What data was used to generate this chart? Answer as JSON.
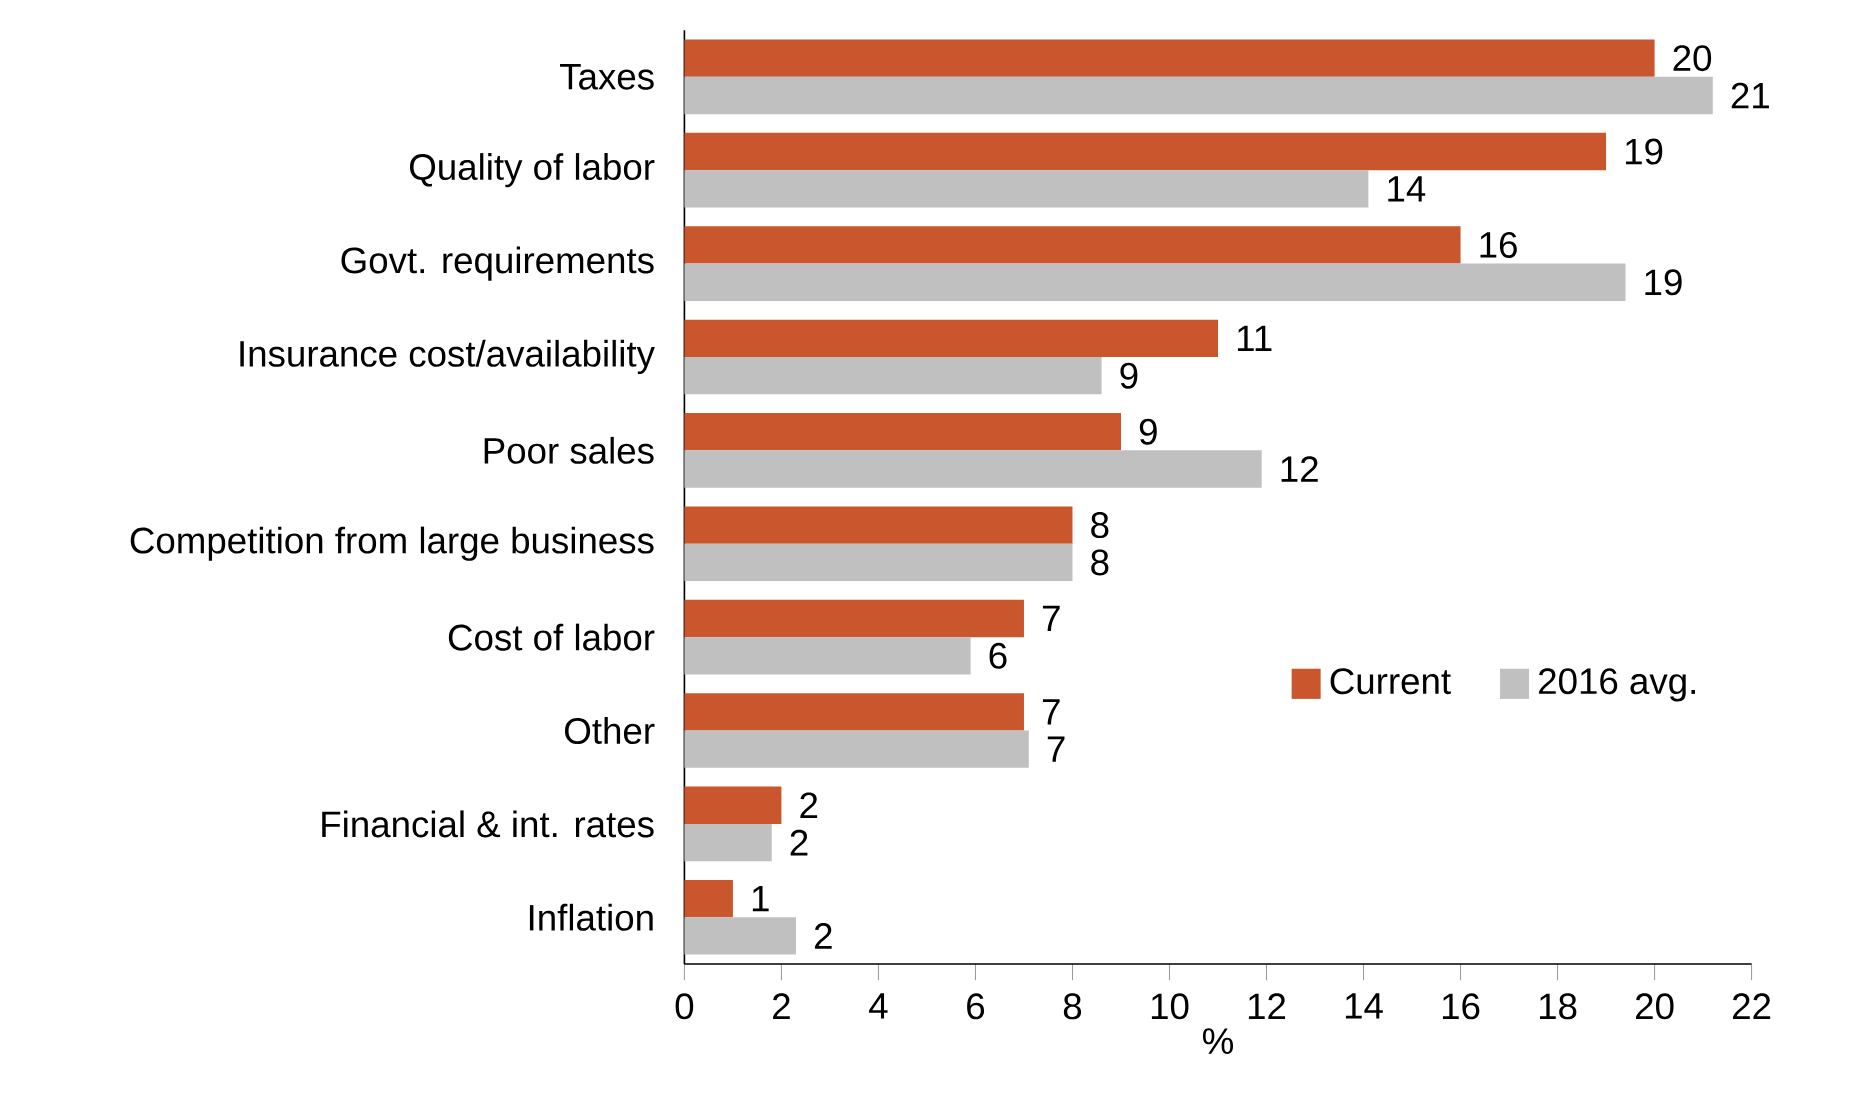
{
  "chart_data": {
    "type": "bar",
    "orientation": "horizontal",
    "xlabel": "%",
    "categories": [
      "Taxes",
      "Quality of labor",
      "Govt. requirements",
      "Insurance cost/availability",
      "Poor sales",
      "Competition from large business",
      "Cost of labor",
      "Other",
      "Financial & int. rates",
      "Inflation"
    ],
    "series": [
      {
        "name": "Current",
        "color": "#c9562c",
        "values": [
          20,
          19,
          16,
          11,
          9,
          8,
          7,
          7,
          2,
          1
        ],
        "value_labels": [
          "20",
          "19",
          "16",
          "11",
          "9",
          "8",
          "7",
          "7",
          "2",
          "1"
        ]
      },
      {
        "name": "2016 avg.",
        "color": "#c0c0c0",
        "values": [
          21.2,
          14.1,
          19.4,
          8.6,
          11.9,
          8.0,
          5.9,
          7.1,
          1.8,
          2.3
        ],
        "value_labels": [
          "21",
          "14",
          "19",
          "9",
          "12",
          "8",
          "6",
          "7",
          "2",
          "2"
        ]
      }
    ],
    "xlim": [
      0,
      22
    ],
    "xticks": [
      0,
      2,
      4,
      6,
      8,
      10,
      12,
      14,
      16,
      18,
      20,
      22
    ],
    "legend": "right",
    "grid": false
  }
}
